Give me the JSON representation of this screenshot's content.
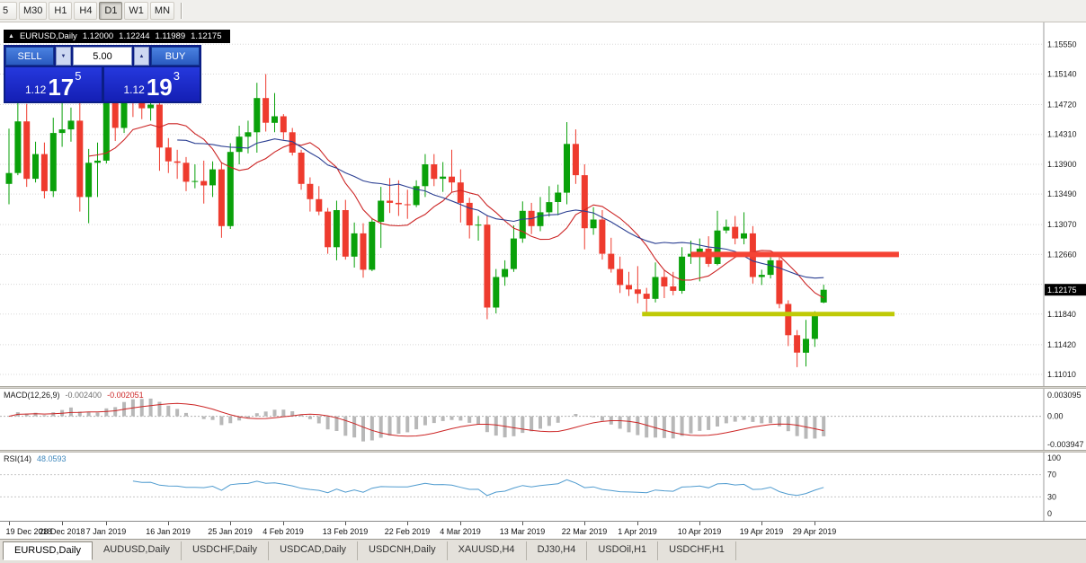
{
  "icons": {
    "collapse_arrow": "▲",
    "spinner_down": "▼",
    "spinner_up": "▲"
  },
  "toolbar": {
    "timeframes": [
      {
        "label": "5",
        "active": false,
        "clipped": true
      },
      {
        "label": "M30",
        "active": false,
        "clipped": false
      },
      {
        "label": "H1",
        "active": false,
        "clipped": false
      },
      {
        "label": "H4",
        "active": false,
        "clipped": false
      },
      {
        "label": "D1",
        "active": true,
        "clipped": false
      },
      {
        "label": "W1",
        "active": false,
        "clipped": false
      },
      {
        "label": "MN",
        "active": false,
        "clipped": false
      }
    ]
  },
  "chart_header": {
    "title": "EURUSD,Daily",
    "open": "1.12000",
    "high": "1.12244",
    "low": "1.11989",
    "close": "1.12175"
  },
  "trade_panel": {
    "sell_label": "SELL",
    "buy_label": "BUY",
    "volume": "5.00",
    "sell_price_prefix": "1.12",
    "sell_price_main": "17",
    "sell_price_sup": "5",
    "buy_price_prefix": "1.12",
    "buy_price_main": "19",
    "buy_price_sup": "3"
  },
  "tabs": {
    "items": [
      {
        "label": "EURUSD,Daily",
        "active": true
      },
      {
        "label": "AUDUSD,Daily",
        "active": false
      },
      {
        "label": "USDCHF,Daily",
        "active": false
      },
      {
        "label": "USDCAD,Daily",
        "active": false
      },
      {
        "label": "USDCNH,Daily",
        "active": false
      },
      {
        "label": "XAUUSD,H4",
        "active": false
      },
      {
        "label": "DJ30,H4",
        "active": false
      },
      {
        "label": "USDOil,H1",
        "active": false
      },
      {
        "label": "USDCHF,H1",
        "active": false
      }
    ]
  },
  "chart_data": {
    "type": "candlestick",
    "symbol": "EURUSD",
    "timeframe": "Daily",
    "colors": {
      "bull": "#0aa10a",
      "bear": "#ee3b2e"
    },
    "y_range": [
      1.1085,
      1.1585
    ],
    "current_price": 1.12175,
    "current_price_label": "1.12175",
    "price_gridlines": [
      "1.15550",
      "1.15140",
      "1.14720",
      "1.14310",
      "1.13900",
      "1.13490",
      "1.13070",
      "1.12660",
      "1.12250",
      "1.11840",
      "1.11420",
      "1.11010"
    ],
    "x_labels": [
      {
        "index": 0,
        "label": "19 Dec 2018"
      },
      {
        "index": 6,
        "label": "28 Dec 2018"
      },
      {
        "index": 11,
        "label": "7 Jan 2019"
      },
      {
        "index": 18,
        "label": "16 Jan 2019"
      },
      {
        "index": 25,
        "label": "25 Jan 2019"
      },
      {
        "index": 31,
        "label": "4 Feb 2019"
      },
      {
        "index": 38,
        "label": "13 Feb 2019"
      },
      {
        "index": 45,
        "label": "22 Feb 2019"
      },
      {
        "index": 51,
        "label": "4 Mar 2019"
      },
      {
        "index": 58,
        "label": "13 Mar 2019"
      },
      {
        "index": 65,
        "label": "22 Mar 2019"
      },
      {
        "index": 71,
        "label": "1 Apr 2019"
      },
      {
        "index": 78,
        "label": "10 Apr 2019"
      },
      {
        "index": 85,
        "label": "19 Apr 2019"
      },
      {
        "index": 91,
        "label": "29 Apr 2019"
      }
    ],
    "candles": [
      [
        "2018-12-19",
        1.1363,
        1.1439,
        1.1335,
        1.1378
      ],
      [
        "2018-12-20",
        1.1378,
        1.1486,
        1.1375,
        1.1449
      ],
      [
        "2018-12-21",
        1.1449,
        1.1473,
        1.1359,
        1.137
      ],
      [
        "2018-12-24",
        1.137,
        1.1421,
        1.1365,
        1.1404
      ],
      [
        "2018-12-26",
        1.1404,
        1.142,
        1.1343,
        1.1353
      ],
      [
        "2018-12-27",
        1.1353,
        1.1454,
        1.1345,
        1.1433
      ],
      [
        "2018-12-28",
        1.1433,
        1.1474,
        1.1414,
        1.1438
      ],
      [
        "2018-12-31",
        1.1438,
        1.1468,
        1.1421,
        1.145
      ],
      [
        "2019-01-02",
        1.145,
        1.1497,
        1.1325,
        1.1345
      ],
      [
        "2019-01-03",
        1.1345,
        1.1411,
        1.1309,
        1.1392
      ],
      [
        "2019-01-04",
        1.1392,
        1.142,
        1.1345,
        1.1395
      ],
      [
        "2019-01-07",
        1.1395,
        1.1483,
        1.1391,
        1.1474
      ],
      [
        "2019-01-08",
        1.1474,
        1.1485,
        1.1422,
        1.144
      ],
      [
        "2019-01-09",
        1.144,
        1.1528,
        1.1433,
        1.1515
      ],
      [
        "2019-01-10",
        1.1515,
        1.1535,
        1.1455,
        1.1495
      ],
      [
        "2019-01-11",
        1.1495,
        1.1501,
        1.1452,
        1.1467
      ],
      [
        "2019-01-14",
        1.1467,
        1.1482,
        1.145,
        1.1472
      ],
      [
        "2019-01-15",
        1.1472,
        1.1491,
        1.1381,
        1.1413
      ],
      [
        "2019-01-16",
        1.1413,
        1.1426,
        1.1378,
        1.1394
      ],
      [
        "2019-01-17",
        1.1394,
        1.141,
        1.137,
        1.1392
      ],
      [
        "2019-01-18",
        1.1392,
        1.14,
        1.1353,
        1.1366
      ],
      [
        "2019-01-21",
        1.1366,
        1.139,
        1.1357,
        1.1367
      ],
      [
        "2019-01-22",
        1.1367,
        1.1395,
        1.1336,
        1.1361
      ],
      [
        "2019-01-23",
        1.1361,
        1.1394,
        1.1345,
        1.1383
      ],
      [
        "2019-01-24",
        1.1383,
        1.1393,
        1.1289,
        1.1305
      ],
      [
        "2019-01-25",
        1.1305,
        1.1419,
        1.1301,
        1.1407
      ],
      [
        "2019-01-28",
        1.1407,
        1.1443,
        1.139,
        1.1428
      ],
      [
        "2019-01-29",
        1.1428,
        1.145,
        1.1405,
        1.1434
      ],
      [
        "2019-01-30",
        1.1434,
        1.1502,
        1.1406,
        1.1481
      ],
      [
        "2019-01-31",
        1.1481,
        1.1514,
        1.1435,
        1.1447
      ],
      [
        "2019-02-01",
        1.1447,
        1.1488,
        1.1434,
        1.1456
      ],
      [
        "2019-02-04",
        1.1456,
        1.1459,
        1.1424,
        1.1434
      ],
      [
        "2019-02-05",
        1.1434,
        1.144,
        1.1402,
        1.1406
      ],
      [
        "2019-02-06",
        1.1406,
        1.141,
        1.1355,
        1.1363
      ],
      [
        "2019-02-07",
        1.1363,
        1.1372,
        1.1325,
        1.1342
      ],
      [
        "2019-02-08",
        1.1342,
        1.136,
        1.132,
        1.1325
      ],
      [
        "2019-02-11",
        1.1325,
        1.133,
        1.1267,
        1.1276
      ],
      [
        "2019-02-12",
        1.1276,
        1.134,
        1.1258,
        1.1327
      ],
      [
        "2019-02-13",
        1.1327,
        1.1341,
        1.1259,
        1.1263
      ],
      [
        "2019-02-14",
        1.1263,
        1.131,
        1.1248,
        1.1295
      ],
      [
        "2019-02-15",
        1.1295,
        1.1309,
        1.1234,
        1.1245
      ],
      [
        "2019-02-18",
        1.1245,
        1.1316,
        1.1243,
        1.1311
      ],
      [
        "2019-02-19",
        1.1311,
        1.1359,
        1.1275,
        1.134
      ],
      [
        "2019-02-20",
        1.134,
        1.1371,
        1.1323,
        1.1337
      ],
      [
        "2019-02-21",
        1.1337,
        1.1368,
        1.1319,
        1.1335
      ],
      [
        "2019-02-22",
        1.1335,
        1.1355,
        1.1315,
        1.1334
      ],
      [
        "2019-02-25",
        1.1334,
        1.1368,
        1.1331,
        1.136
      ],
      [
        "2019-02-26",
        1.136,
        1.1404,
        1.1345,
        1.139
      ],
      [
        "2019-02-27",
        1.139,
        1.1404,
        1.136,
        1.137
      ],
      [
        "2019-02-28",
        1.137,
        1.1393,
        1.1352,
        1.1373
      ],
      [
        "2019-03-01",
        1.1373,
        1.141,
        1.1352,
        1.1365
      ],
      [
        "2019-03-04",
        1.1365,
        1.1383,
        1.131,
        1.1337
      ],
      [
        "2019-03-05",
        1.1337,
        1.1344,
        1.1288,
        1.1306
      ],
      [
        "2019-03-06",
        1.1306,
        1.1319,
        1.1285,
        1.1307
      ],
      [
        "2019-03-07",
        1.1307,
        1.132,
        1.1177,
        1.1193
      ],
      [
        "2019-03-08",
        1.1193,
        1.1246,
        1.1185,
        1.1235
      ],
      [
        "2019-03-11",
        1.1235,
        1.1258,
        1.1223,
        1.1246
      ],
      [
        "2019-03-12",
        1.1246,
        1.1306,
        1.1242,
        1.1288
      ],
      [
        "2019-03-13",
        1.1288,
        1.1339,
        1.1282,
        1.1326
      ],
      [
        "2019-03-14",
        1.1326,
        1.1337,
        1.1294,
        1.1305
      ],
      [
        "2019-03-15",
        1.1305,
        1.1345,
        1.1298,
        1.1324
      ],
      [
        "2019-03-18",
        1.1324,
        1.136,
        1.1318,
        1.1338
      ],
      [
        "2019-03-19",
        1.1338,
        1.1362,
        1.132,
        1.1351
      ],
      [
        "2019-03-20",
        1.1351,
        1.1448,
        1.1335,
        1.1418
      ],
      [
        "2019-03-21",
        1.1418,
        1.1438,
        1.1363,
        1.1375
      ],
      [
        "2019-03-22",
        1.1375,
        1.139,
        1.1273,
        1.1302
      ],
      [
        "2019-03-25",
        1.1302,
        1.1331,
        1.1293,
        1.1314
      ],
      [
        "2019-03-26",
        1.1314,
        1.1327,
        1.1259,
        1.1267
      ],
      [
        "2019-03-27",
        1.1267,
        1.1289,
        1.1241,
        1.1246
      ],
      [
        "2019-03-28",
        1.1246,
        1.1263,
        1.1213,
        1.1224
      ],
      [
        "2019-03-29",
        1.1224,
        1.1242,
        1.1209,
        1.1218
      ],
      [
        "2019-04-01",
        1.1218,
        1.125,
        1.1199,
        1.1212
      ],
      [
        "2019-04-02",
        1.1212,
        1.122,
        1.1183,
        1.1205
      ],
      [
        "2019-04-03",
        1.1205,
        1.1255,
        1.12,
        1.1235
      ],
      [
        "2019-04-04",
        1.1235,
        1.1244,
        1.1206,
        1.1222
      ],
      [
        "2019-04-05",
        1.1222,
        1.1242,
        1.121,
        1.1216
      ],
      [
        "2019-04-08",
        1.1216,
        1.1276,
        1.1212,
        1.1263
      ],
      [
        "2019-04-09",
        1.1263,
        1.1285,
        1.1253,
        1.1267
      ],
      [
        "2019-04-10",
        1.1267,
        1.1288,
        1.1229,
        1.1274
      ],
      [
        "2019-04-11",
        1.1274,
        1.1291,
        1.1249,
        1.1253
      ],
      [
        "2019-04-12",
        1.1253,
        1.1326,
        1.1251,
        1.1299
      ],
      [
        "2019-04-15",
        1.1299,
        1.1314,
        1.1295,
        1.1304
      ],
      [
        "2019-04-16",
        1.1304,
        1.1319,
        1.128,
        1.1288
      ],
      [
        "2019-04-17",
        1.1288,
        1.1324,
        1.128,
        1.1295
      ],
      [
        "2019-04-18",
        1.1295,
        1.1305,
        1.1226,
        1.1235
      ],
      [
        "2019-04-19",
        1.1235,
        1.1245,
        1.1224,
        1.1238
      ],
      [
        "2019-04-22",
        1.1238,
        1.1262,
        1.1233,
        1.1258
      ],
      [
        "2019-04-23",
        1.1258,
        1.1264,
        1.1192,
        1.1198
      ],
      [
        "2019-04-24",
        1.1198,
        1.1203,
        1.114,
        1.1155
      ],
      [
        "2019-04-25",
        1.1155,
        1.1162,
        1.1111,
        1.1131
      ],
      [
        "2019-04-26",
        1.1131,
        1.1176,
        1.1112,
        1.115
      ],
      [
        "2019-04-29",
        1.115,
        1.1188,
        1.1139,
        1.1185
      ],
      [
        "2019-04-30",
        1.12,
        1.12244,
        1.11989,
        1.12175
      ]
    ],
    "moving_averages": [
      {
        "period": 10,
        "color": "#cc2525"
      },
      {
        "period": 20,
        "color": "#2b3f92"
      }
    ],
    "overlays": {
      "resistance_line": {
        "price": 1.1266,
        "from_index": 77,
        "to_index": 100.5,
        "color": "#f54334",
        "width": 6
      },
      "support_line": {
        "price": 1.1184,
        "from_index": 71.5,
        "to_index": 100,
        "color": "#bfca06",
        "width": 5
      }
    },
    "macd": {
      "label": "MACD(12,26,9)",
      "value_main": "-0.002400",
      "value_signal": "-0.002051",
      "fast": 12,
      "slow": 26,
      "signal": 9,
      "scale_top": "0.003095",
      "scale_zero": "0.00",
      "scale_bottom": "-0.003947",
      "histogram_color": "#b8b8b8",
      "signal_color": "#cc2525"
    },
    "rsi": {
      "label": "RSI(14)",
      "value": "48.0593",
      "period": 14,
      "scale_labels": [
        "100",
        "70",
        "30",
        "0"
      ],
      "levels": [
        70,
        30
      ],
      "line_color": "#4f9bcf"
    }
  }
}
